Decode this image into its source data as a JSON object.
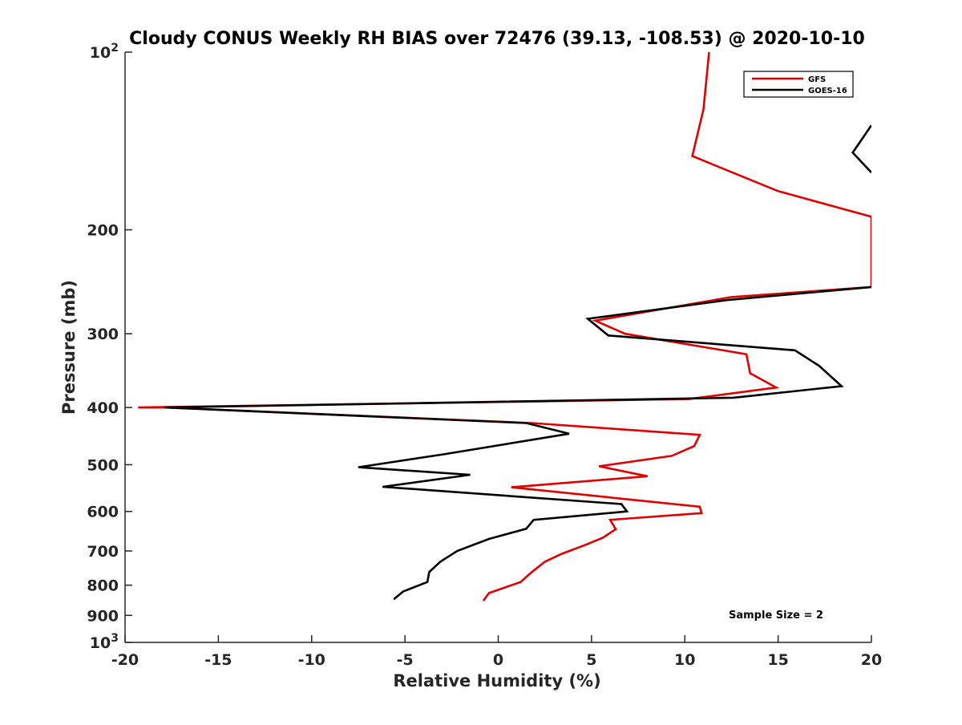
{
  "chart_data": {
    "type": "line",
    "title": "Cloudy CONUS Weekly RH BIAS over 72476 (39.13, -108.53) @ 2020-10-10",
    "xlabel": "Relative Humidity (%)",
    "ylabel": "Pressure (mb)",
    "xlim": [
      -20,
      20
    ],
    "ylim": [
      100,
      1000
    ],
    "y_scale": "log",
    "y_reversed": true,
    "grid": false,
    "legend_placement": "top-right",
    "x_ticks": [
      -20,
      -15,
      -10,
      -5,
      0,
      5,
      10,
      15,
      20
    ],
    "x_tick_labels": [
      "-20",
      "-15",
      "-10",
      "-5",
      "0",
      "5",
      "10",
      "15",
      "20"
    ],
    "y_ticks": [
      100,
      200,
      300,
      400,
      500,
      600,
      700,
      800,
      900,
      1000
    ],
    "y_tick_labels": [
      "10^2",
      "200",
      "300",
      "400",
      "500",
      "600",
      "700",
      "800",
      "900",
      "10^3"
    ],
    "annotation": "Sample Size = 2",
    "series": [
      {
        "name": "GFS",
        "color": "#e00000",
        "points": [
          [
            11.3,
            100
          ],
          [
            11.0,
            125
          ],
          [
            10.4,
            150
          ],
          [
            15.0,
            172
          ],
          [
            20.0,
            190
          ],
          [
            20.0,
            250
          ],
          [
            12.5,
            260
          ],
          [
            5.2,
            285
          ],
          [
            6.8,
            300
          ],
          [
            13.3,
            325
          ],
          [
            13.5,
            350
          ],
          [
            14.9,
            370
          ],
          [
            10.2,
            387
          ],
          [
            -19.3,
            400
          ],
          [
            -17.8,
            400
          ],
          [
            1.8,
            425
          ],
          [
            10.8,
            445
          ],
          [
            10.5,
            465
          ],
          [
            9.3,
            483
          ],
          [
            5.4,
            503
          ],
          [
            8.0,
            523
          ],
          [
            0.7,
            546
          ],
          [
            10.8,
            589
          ],
          [
            10.9,
            604
          ],
          [
            6.0,
            620
          ],
          [
            6.3,
            643
          ],
          [
            5.6,
            665
          ],
          [
            4.6,
            685
          ],
          [
            3.4,
            708
          ],
          [
            2.5,
            730
          ],
          [
            1.8,
            760
          ],
          [
            1.2,
            790
          ],
          [
            -0.5,
            825
          ],
          [
            -0.8,
            850
          ]
        ]
      },
      {
        "name": "GOES-16",
        "color": "#000000",
        "points": [
          [
            20.0,
            250
          ],
          [
            12.3,
            263
          ],
          [
            4.8,
            283
          ],
          [
            5.9,
            302
          ],
          [
            15.9,
            320
          ],
          [
            17.2,
            340
          ],
          [
            18.4,
            368
          ],
          [
            12.6,
            385
          ],
          [
            -17.9,
            400
          ],
          [
            1.5,
            425
          ],
          [
            3.8,
            443
          ],
          [
            -2.9,
            480
          ],
          [
            -7.5,
            505
          ],
          [
            -1.5,
            520
          ],
          [
            -6.2,
            545
          ],
          [
            6.6,
            583
          ],
          [
            6.9,
            600
          ],
          [
            1.9,
            620
          ],
          [
            1.5,
            642
          ],
          [
            -0.5,
            668
          ],
          [
            -2.2,
            700
          ],
          [
            -3.1,
            730
          ],
          [
            -3.7,
            760
          ],
          [
            -3.8,
            790
          ],
          [
            -5.1,
            820
          ],
          [
            -5.6,
            845
          ]
        ]
      },
      {
        "name": "",
        "color": "#000000",
        "points": [
          [
            20.0,
            133
          ],
          [
            19.0,
            148
          ],
          [
            20.0,
            160
          ]
        ]
      }
    ]
  }
}
